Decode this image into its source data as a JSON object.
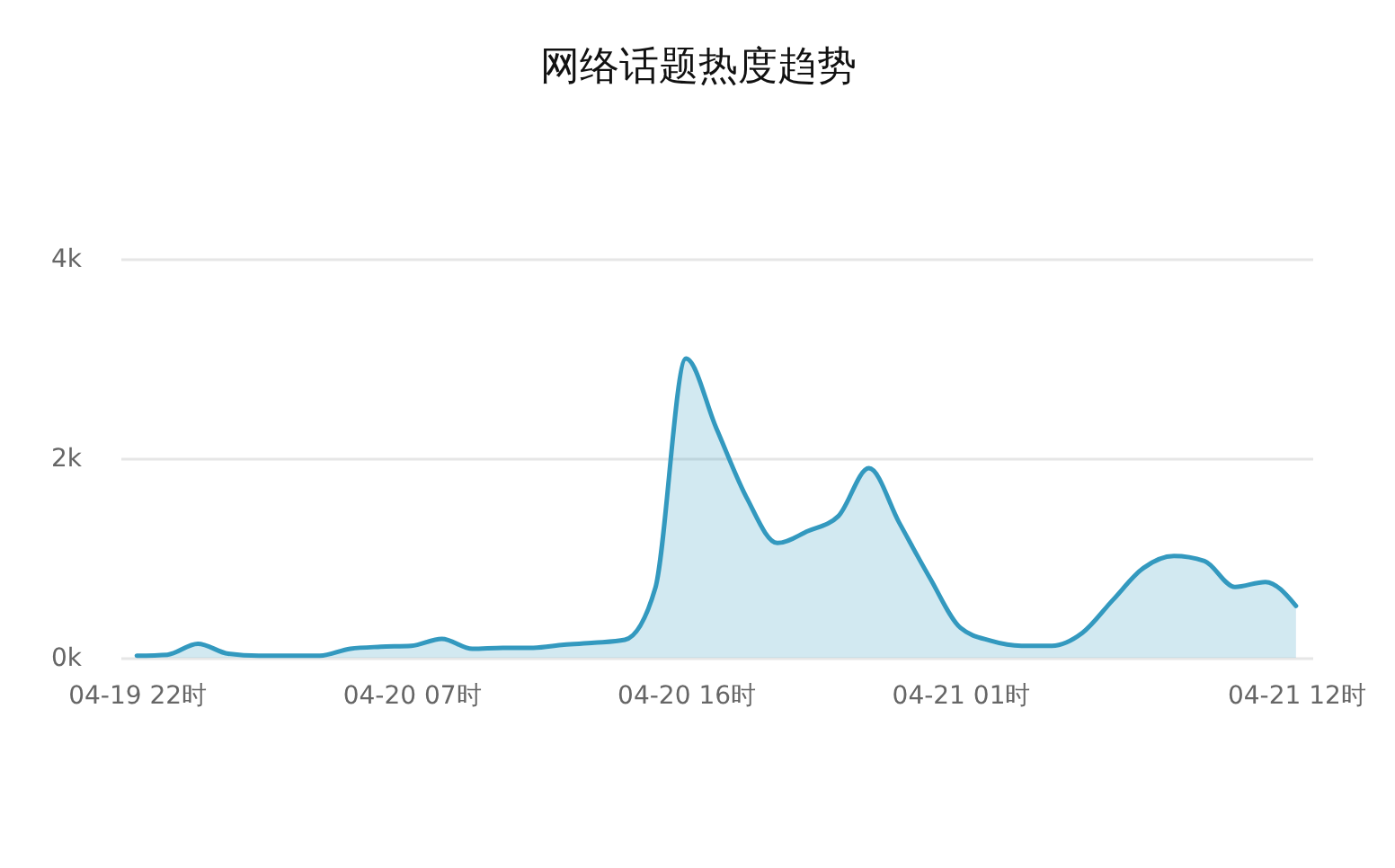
{
  "chart_data": {
    "type": "area",
    "title": "网络话题热度趋势",
    "categories": [
      "04-19 22时",
      null,
      null,
      null,
      null,
      null,
      null,
      null,
      null,
      "04-20 07时",
      null,
      null,
      null,
      null,
      null,
      null,
      null,
      null,
      "04-20 16时",
      null,
      null,
      null,
      null,
      null,
      null,
      null,
      null,
      "04-21 01时",
      null,
      null,
      null,
      null,
      null,
      null,
      null,
      null,
      null,
      null,
      "04-21 12时"
    ],
    "series": [
      {
        "color": "#3399bf",
        "values": [
          20,
          30,
          140,
          40,
          20,
          20,
          20,
          90,
          110,
          120,
          190,
          90,
          100,
          100,
          130,
          150,
          180,
          700,
          3000,
          2300,
          1600,
          1150,
          1270,
          1420,
          1900,
          1350,
          800,
          300,
          170,
          120,
          120,
          250,
          580,
          900,
          1020,
          970,
          710,
          760,
          520
        ]
      }
    ],
    "ylim": [
      0,
      4000
    ],
    "yticks": [
      {
        "value": 0,
        "label": "0k"
      },
      {
        "value": 2000,
        "label": "2k"
      },
      {
        "value": 4000,
        "label": "4k"
      }
    ],
    "grid": "y"
  }
}
